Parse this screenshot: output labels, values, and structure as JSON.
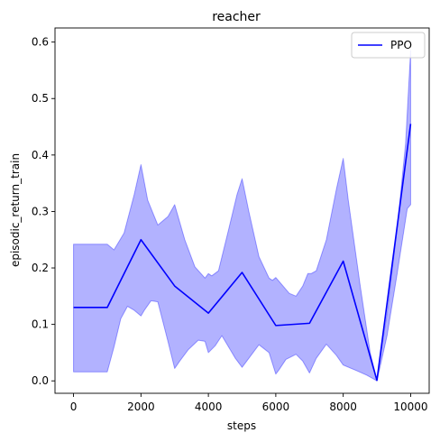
{
  "chart_data": {
    "type": "line",
    "title": "reacher",
    "xlabel": "steps",
    "ylabel": "episodic_return_train",
    "xlim": [
      -550,
      10550
    ],
    "ylim": [
      -0.022,
      0.625
    ],
    "xticks": [
      0,
      2000,
      4000,
      6000,
      8000,
      10000
    ],
    "xtick_labels": [
      "0",
      "2000",
      "4000",
      "6000",
      "8000",
      "10000"
    ],
    "yticks": [
      0.0,
      0.1,
      0.2,
      0.3,
      0.4,
      0.5,
      0.6
    ],
    "ytick_labels": [
      "0.0",
      "0.1",
      "0.2",
      "0.3",
      "0.4",
      "0.5",
      "0.6"
    ],
    "grid": false,
    "legend": {
      "position": "top-right",
      "entries": [
        "PPO"
      ]
    },
    "series": [
      {
        "name": "PPO",
        "color": "#0000ff",
        "x": [
          0,
          1000,
          2000,
          3000,
          4000,
          5000,
          6000,
          7000,
          8000,
          9000,
          10000
        ],
        "y": [
          0.13,
          0.13,
          0.25,
          0.168,
          0.12,
          0.192,
          0.098,
          0.102,
          0.212,
          0.001,
          0.455
        ]
      }
    ],
    "band": {
      "series": "PPO",
      "color": "#0000ff",
      "opacity": 0.3,
      "upper": [
        [
          0,
          0.242
        ],
        [
          1000,
          0.242
        ],
        [
          1200,
          0.232
        ],
        [
          1500,
          0.262
        ],
        [
          1800,
          0.33
        ],
        [
          2000,
          0.383
        ],
        [
          2200,
          0.32
        ],
        [
          2500,
          0.276
        ],
        [
          2800,
          0.291
        ],
        [
          3000,
          0.312
        ],
        [
          3300,
          0.25
        ],
        [
          3600,
          0.202
        ],
        [
          3900,
          0.182
        ],
        [
          4000,
          0.19
        ],
        [
          4100,
          0.186
        ],
        [
          4300,
          0.195
        ],
        [
          4600,
          0.268
        ],
        [
          4850,
          0.33
        ],
        [
          5000,
          0.358
        ],
        [
          5200,
          0.3
        ],
        [
          5500,
          0.22
        ],
        [
          5800,
          0.182
        ],
        [
          5900,
          0.178
        ],
        [
          6000,
          0.183
        ],
        [
          6100,
          0.176
        ],
        [
          6400,
          0.155
        ],
        [
          6600,
          0.15
        ],
        [
          6800,
          0.168
        ],
        [
          6950,
          0.19
        ],
        [
          7050,
          0.19
        ],
        [
          7200,
          0.195
        ],
        [
          7500,
          0.25
        ],
        [
          7800,
          0.34
        ],
        [
          8000,
          0.394
        ],
        [
          8150,
          0.32
        ],
        [
          8500,
          0.17
        ],
        [
          8800,
          0.05
        ],
        [
          9000,
          0.001
        ],
        [
          9300,
          0.12
        ],
        [
          9600,
          0.27
        ],
        [
          9850,
          0.42
        ],
        [
          10000,
          0.585
        ]
      ],
      "lower": [
        [
          10000,
          0.312
        ],
        [
          9900,
          0.305
        ],
        [
          9600,
          0.19
        ],
        [
          9300,
          0.08
        ],
        [
          9000,
          0.0
        ],
        [
          8700,
          0.01
        ],
        [
          8400,
          0.018
        ],
        [
          8000,
          0.028
        ],
        [
          7800,
          0.045
        ],
        [
          7500,
          0.065
        ],
        [
          7200,
          0.04
        ],
        [
          7000,
          0.014
        ],
        [
          6800,
          0.035
        ],
        [
          6600,
          0.047
        ],
        [
          6300,
          0.038
        ],
        [
          6100,
          0.02
        ],
        [
          6000,
          0.012
        ],
        [
          5800,
          0.05
        ],
        [
          5500,
          0.064
        ],
        [
          5200,
          0.04
        ],
        [
          5000,
          0.024
        ],
        [
          4800,
          0.04
        ],
        [
          4400,
          0.08
        ],
        [
          4200,
          0.062
        ],
        [
          4000,
          0.05
        ],
        [
          3900,
          0.07
        ],
        [
          3700,
          0.072
        ],
        [
          3400,
          0.055
        ],
        [
          3150,
          0.035
        ],
        [
          3000,
          0.022
        ],
        [
          2800,
          0.07
        ],
        [
          2500,
          0.14
        ],
        [
          2300,
          0.142
        ],
        [
          2100,
          0.125
        ],
        [
          2000,
          0.115
        ],
        [
          1800,
          0.125
        ],
        [
          1600,
          0.132
        ],
        [
          1400,
          0.11
        ],
        [
          1200,
          0.06
        ],
        [
          1000,
          0.016
        ],
        [
          0,
          0.016
        ]
      ]
    }
  }
}
